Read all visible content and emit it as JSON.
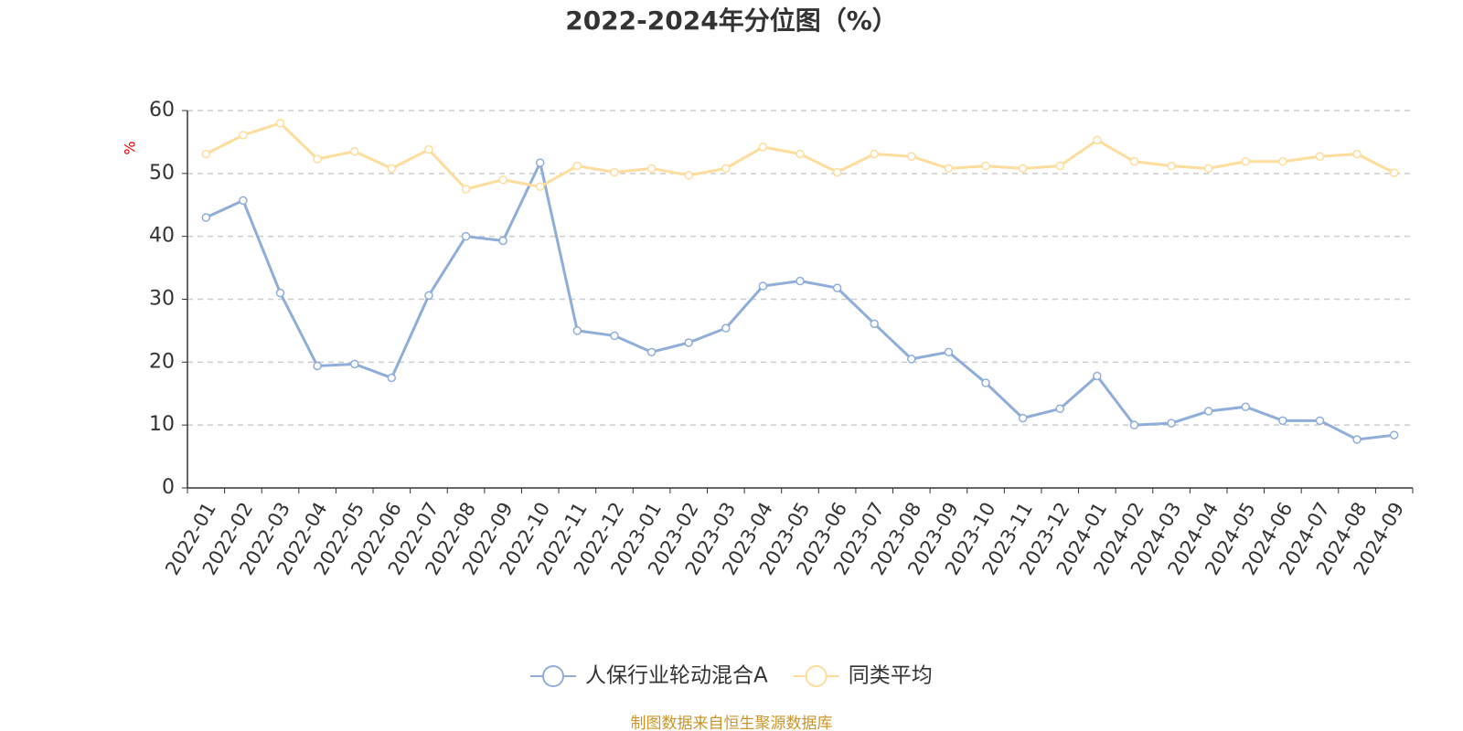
{
  "chart_data": {
    "type": "line",
    "title": "2022-2024年分位图（%）",
    "y_label": "%",
    "source": "制图数据来自恒生聚源数据库",
    "categories": [
      "2022-01",
      "2022-02",
      "2022-03",
      "2022-04",
      "2022-05",
      "2022-06",
      "2022-07",
      "2022-08",
      "2022-09",
      "2022-10",
      "2022-11",
      "2022-12",
      "2023-01",
      "2023-02",
      "2023-03",
      "2023-04",
      "2023-05",
      "2023-06",
      "2023-07",
      "2023-08",
      "2023-09",
      "2023-10",
      "2023-11",
      "2023-12",
      "2024-01",
      "2024-02",
      "2024-03",
      "2024-04",
      "2024-05",
      "2024-06",
      "2024-07",
      "2024-08",
      "2024-09"
    ],
    "series": [
      {
        "name": "人保行业轮动混合A",
        "color": "#8eadd8",
        "values": [
          43.0,
          45.7,
          31.0,
          19.4,
          19.7,
          17.5,
          30.6,
          40.0,
          39.3,
          51.7,
          25.0,
          24.2,
          21.6,
          23.1,
          25.4,
          32.1,
          32.9,
          31.8,
          26.1,
          20.5,
          21.6,
          16.7,
          11.1,
          12.6,
          17.8,
          10.0,
          10.3,
          12.2,
          12.9,
          10.7,
          10.7,
          7.7,
          8.4
        ]
      },
      {
        "name": "同类平均",
        "color": "#fddc9c",
        "values": [
          53.1,
          56.1,
          58.0,
          52.3,
          53.5,
          50.8,
          53.8,
          47.5,
          49.0,
          47.9,
          51.2,
          50.2,
          50.8,
          49.7,
          50.8,
          54.2,
          53.1,
          50.2,
          53.1,
          52.7,
          50.8,
          51.2,
          50.8,
          51.2,
          55.3,
          51.9,
          51.2,
          50.8,
          51.9,
          51.9,
          52.7,
          53.1,
          50.1
        ]
      }
    ],
    "ylim": [
      0,
      60
    ],
    "yticks": [
      0,
      10,
      20,
      30,
      40,
      50,
      60
    ],
    "grid": true
  }
}
